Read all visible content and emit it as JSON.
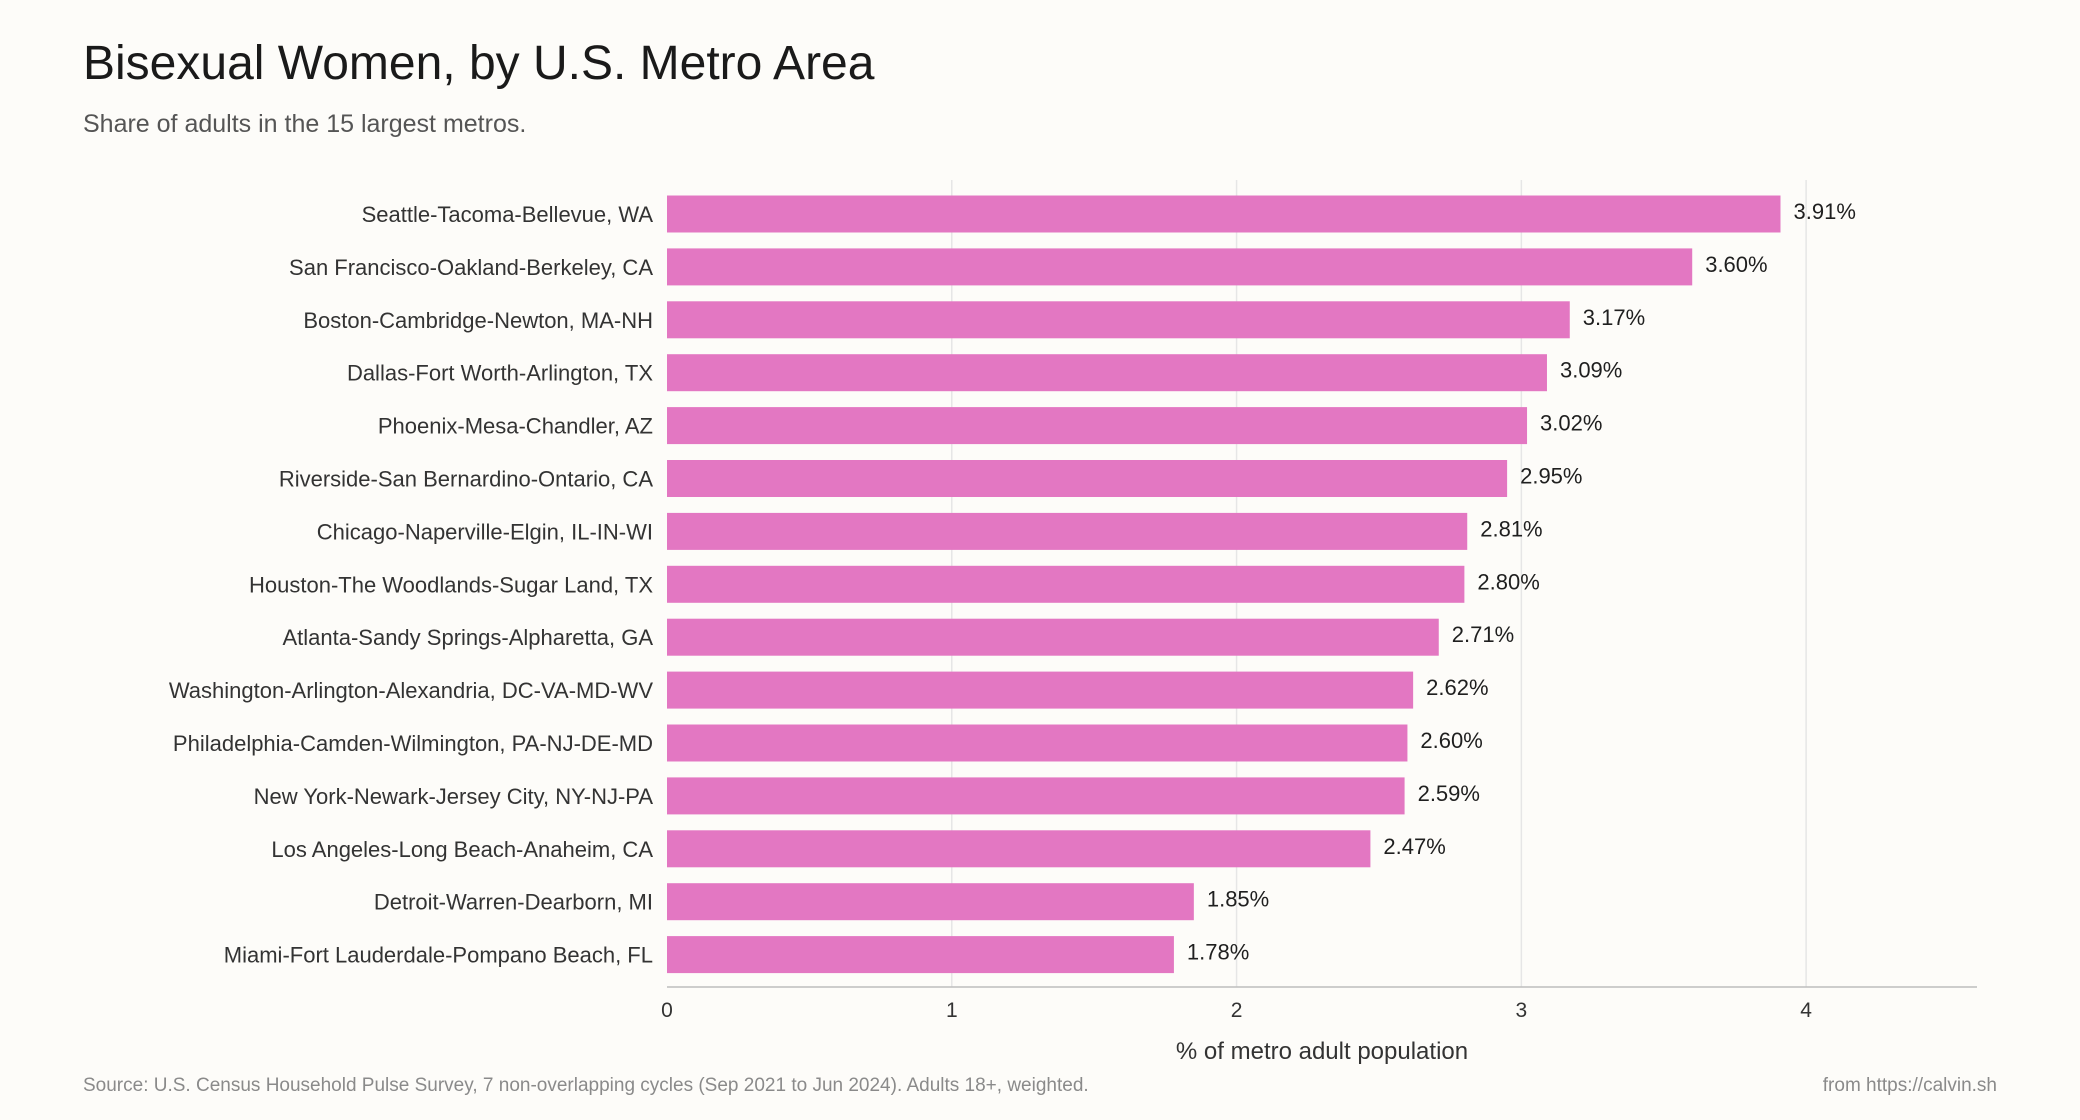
{
  "header": {
    "title": "Bisexual Women, by U.S. Metro Area",
    "subtitle": "Share of adults in the 15 largest metros."
  },
  "footer": {
    "source": "Source: U.S. Census Household Pulse Survey, 7 non-overlapping cycles (Sep 2021 to Jun 2024). Adults 18+, weighted.",
    "credit": "from https://calvin.sh"
  },
  "colors": {
    "bar": "#e377c2",
    "grid": "#e6e6e6",
    "axis": "#bdbdbd"
  },
  "chart_data": {
    "type": "bar",
    "orientation": "horizontal",
    "title": "Bisexual Women, by U.S. Metro Area",
    "subtitle": "Share of adults in the 15 largest metros.",
    "xlabel": "% of metro adult population",
    "ylabel": "",
    "xlim": [
      0,
      4.6
    ],
    "xticks": [
      0,
      1,
      2,
      3,
      4
    ],
    "grid": true,
    "value_suffix": "%",
    "categories": [
      "Seattle-Tacoma-Bellevue, WA",
      "San Francisco-Oakland-Berkeley, CA",
      "Boston-Cambridge-Newton, MA-NH",
      "Dallas-Fort Worth-Arlington, TX",
      "Phoenix-Mesa-Chandler, AZ",
      "Riverside-San Bernardino-Ontario, CA",
      "Chicago-Naperville-Elgin, IL-IN-WI",
      "Houston-The Woodlands-Sugar Land, TX",
      "Atlanta-Sandy Springs-Alpharetta, GA",
      "Washington-Arlington-Alexandria, DC-VA-MD-WV",
      "Philadelphia-Camden-Wilmington, PA-NJ-DE-MD",
      "New York-Newark-Jersey City, NY-NJ-PA",
      "Los Angeles-Long Beach-Anaheim, CA",
      "Detroit-Warren-Dearborn, MI",
      "Miami-Fort Lauderdale-Pompano Beach, FL"
    ],
    "values": [
      3.91,
      3.6,
      3.17,
      3.09,
      3.02,
      2.95,
      2.81,
      2.8,
      2.71,
      2.62,
      2.6,
      2.59,
      2.47,
      1.85,
      1.78
    ],
    "value_labels": [
      "3.91%",
      "3.60%",
      "3.17%",
      "3.09%",
      "3.02%",
      "2.95%",
      "2.81%",
      "2.80%",
      "2.71%",
      "2.62%",
      "2.60%",
      "2.59%",
      "2.47%",
      "1.85%",
      "1.78%"
    ]
  }
}
